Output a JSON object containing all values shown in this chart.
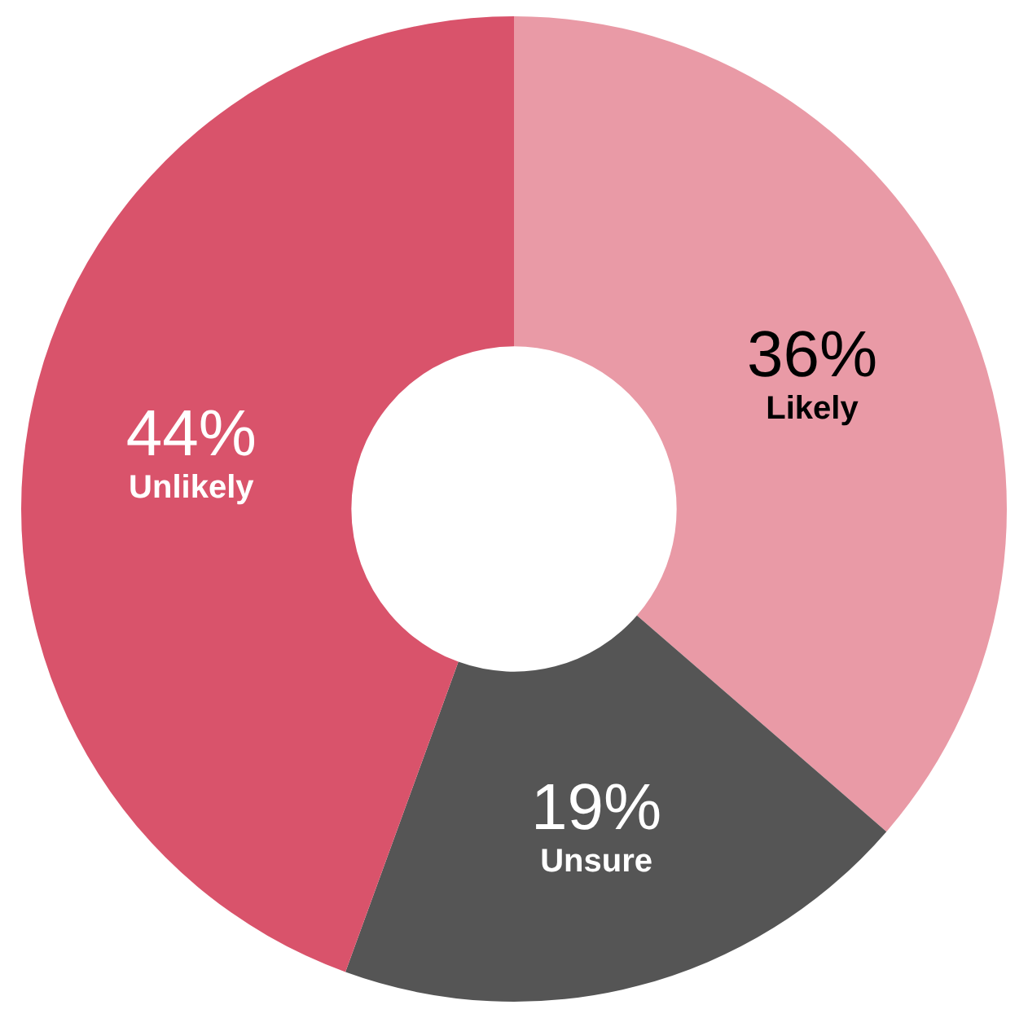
{
  "chart_data": {
    "type": "donut",
    "categories": [
      "Likely",
      "Unsure",
      "Unlikely"
    ],
    "values": [
      36,
      19,
      44
    ],
    "value_labels": [
      "36%",
      "19%",
      "44%"
    ],
    "colors": [
      "#e99aa6",
      "#555555",
      "#d9536b"
    ],
    "legend": false
  }
}
